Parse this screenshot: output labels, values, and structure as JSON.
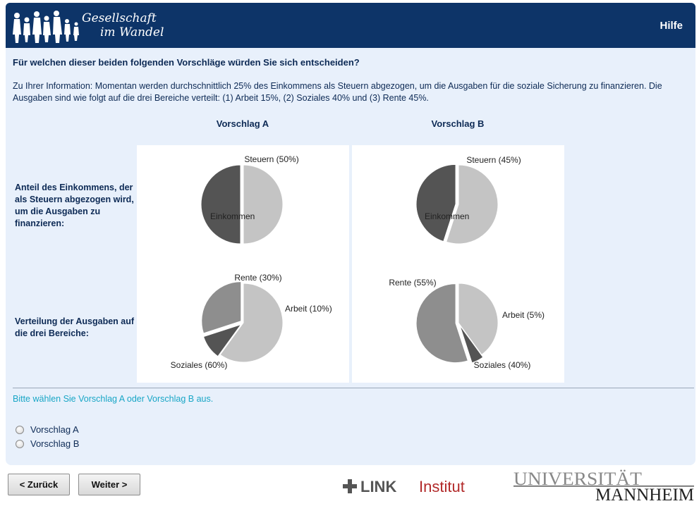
{
  "header": {
    "logo_line1": "Gesellschaft",
    "logo_line2": "im Wandel",
    "help_label": "Hilfe",
    "color": "#0d3468"
  },
  "survey": {
    "question": "Für welchen dieser beiden folgenden Vorschläge würden Sie sich entscheiden?",
    "info": "Zu Ihrer Information: Momentan werden durchschnittlich 25% des Einkommens als Steuern abgezogen, um die Ausgaben für die soziale Sicherung zu finanzieren. Die Ausgaben sind wie folgt auf die drei Bereiche verteilt: (1) Arbeit 15%, (2) Soziales 40% und (3) Rente 45%.",
    "col_a": "Vorschlag A",
    "col_b": "Vorschlag B",
    "row1_label": "Anteil des Einkommens, der als Steuern abgezogen wird, um die Ausgaben zu finanzieren:",
    "row2_label": "Verteilung der Ausgaben auf die drei Bereiche:",
    "instruction": "Bitte wählen Sie Vorschlag A oder Vorschlag B aus.",
    "options": [
      "Vorschlag A",
      "Vorschlag B"
    ],
    "instruction_color": "#18a6c6"
  },
  "chart_data": [
    {
      "type": "pie",
      "proposal": "Vorschlag A",
      "slices": [
        {
          "label": "Steuern (50%)",
          "value": 50,
          "color": "#545454",
          "exploded": true
        },
        {
          "label": "Einkommen",
          "value": 50,
          "color": "#c4c4c4",
          "exploded": false
        }
      ]
    },
    {
      "type": "pie",
      "proposal": "Vorschlag A",
      "slices": [
        {
          "label": "Rente (30%)",
          "value": 30,
          "color": "#8e8e8e",
          "exploded": true
        },
        {
          "label": "Arbeit (10%)",
          "value": 10,
          "color": "#545454",
          "exploded": true
        },
        {
          "label": "Soziales (60%)",
          "value": 60,
          "color": "#c4c4c4",
          "exploded": false
        }
      ]
    },
    {
      "type": "pie",
      "proposal": "Vorschlag B",
      "slices": [
        {
          "label": "Steuern (45%)",
          "value": 45,
          "color": "#545454",
          "exploded": true
        },
        {
          "label": "Einkommen",
          "value": 55,
          "color": "#c4c4c4",
          "exploded": false
        }
      ]
    },
    {
      "type": "pie",
      "proposal": "Vorschlag B",
      "slices": [
        {
          "label": "Rente (55%)",
          "value": 55,
          "color": "#8e8e8e",
          "exploded": true
        },
        {
          "label": "Arbeit (5%)",
          "value": 5,
          "color": "#545454",
          "exploded": true
        },
        {
          "label": "Soziales (40%)",
          "value": 40,
          "color": "#c4c4c4",
          "exploded": false
        }
      ]
    }
  ],
  "nav": {
    "back_label": "< Zurück",
    "next_label": "Weiter >"
  },
  "footer": {
    "link_logo_bold": "LINK",
    "link_logo_rest": "Institut",
    "uni_line1": "UNIVERSITÄT",
    "uni_line2": "MANNHEIM"
  }
}
